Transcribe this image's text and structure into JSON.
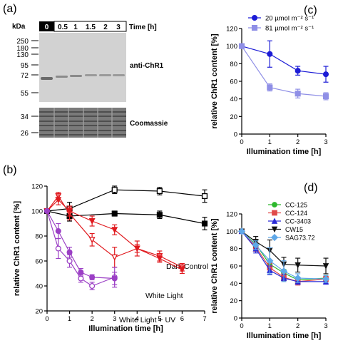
{
  "panels": {
    "a": "(a)",
    "b": "(b)",
    "c": "(c)",
    "d": "(d)"
  },
  "blot": {
    "kda_label": "kDa",
    "time_label": "Time [h]",
    "lanes": [
      "0",
      "0.5",
      "1",
      "1.5",
      "2",
      "3"
    ],
    "markers_top": [
      "250",
      "180",
      "130",
      "95",
      "72",
      "55"
    ],
    "markers_bottom": [
      "34",
      "26"
    ],
    "label_top": "anti-ChR1",
    "label_bottom": "Coomassie"
  },
  "chart_data": [
    {
      "panel": "b",
      "type": "line",
      "xlabel": "Illumination time [h]",
      "ylabel": "relative ChR1 content [%]",
      "xlim": [
        0,
        7
      ],
      "ylim": [
        20,
        120
      ],
      "xticks": [
        "0",
        "1",
        "2",
        "3",
        "4",
        "5",
        "6",
        "7"
      ],
      "yticks": [
        "20",
        "40",
        "60",
        "80",
        "100",
        "120"
      ],
      "annotations": [
        "Dark Control",
        "White Light",
        "White Light + UV"
      ],
      "series": [
        {
          "marker": "open-square",
          "color": "#000000",
          "x": [
            0,
            1,
            3,
            5,
            7
          ],
          "y": [
            100,
            102,
            117,
            116,
            112
          ],
          "err": [
            0,
            5,
            3,
            3,
            5
          ]
        },
        {
          "marker": "filled-square",
          "color": "#000000",
          "x": [
            0,
            1,
            3,
            5,
            7
          ],
          "y": [
            100,
            96,
            98,
            97,
            90
          ],
          "err": [
            0,
            4,
            2,
            3,
            5
          ]
        },
        {
          "marker": "open-triangle-down",
          "color": "#e0191e",
          "x": [
            0,
            0.5,
            1,
            2,
            3,
            4,
            5,
            6
          ],
          "y": [
            100,
            112,
            98,
            77,
            63,
            70,
            64,
            55
          ],
          "err": [
            0,
            3,
            5,
            5,
            8,
            6,
            4,
            3
          ]
        },
        {
          "marker": "filled-triangle-down",
          "color": "#e0191e",
          "x": [
            0,
            0.5,
            1,
            2,
            3,
            4,
            5,
            6
          ],
          "y": [
            100,
            109,
            100,
            92,
            85,
            70,
            62,
            53
          ],
          "err": [
            0,
            4,
            4,
            4,
            4,
            3,
            3,
            3
          ]
        },
        {
          "marker": "open-circle",
          "color": "#9b3fc5",
          "x": [
            0,
            0.5,
            1,
            1.5,
            2,
            3
          ],
          "y": [
            100,
            70,
            60,
            46,
            40,
            47
          ],
          "err": [
            0,
            8,
            5,
            3,
            3,
            8
          ]
        },
        {
          "marker": "filled-circle",
          "color": "#9b3fc5",
          "x": [
            0,
            0.5,
            1,
            1.5,
            2,
            3
          ],
          "y": [
            100,
            84,
            67,
            51,
            47,
            46
          ],
          "err": [
            0,
            6,
            4,
            3,
            2,
            5
          ]
        }
      ]
    },
    {
      "panel": "c",
      "type": "line",
      "xlabel": "Illumination time [h]",
      "ylabel": "relative ChR1 content [%]",
      "xlim": [
        0,
        3
      ],
      "ylim": [
        0,
        120
      ],
      "xticks": [
        "0",
        "1",
        "2",
        "3"
      ],
      "yticks": [
        "0",
        "20",
        "40",
        "60",
        "80",
        "100",
        "120"
      ],
      "legend": "top-right",
      "series": [
        {
          "name": "20 µmol m⁻² s⁻¹",
          "marker": "filled-circle",
          "color": "#1c1cd6",
          "x": [
            0,
            1,
            2,
            3
          ],
          "y": [
            100,
            91,
            72,
            68
          ],
          "err": [
            0,
            15,
            5,
            9
          ]
        },
        {
          "name": "81 µmol m⁻² s⁻¹",
          "marker": "filled-square",
          "color": "#8f8fe6",
          "x": [
            0,
            1,
            2,
            3
          ],
          "y": [
            100,
            53,
            46,
            43
          ],
          "err": [
            0,
            4,
            5,
            4
          ]
        }
      ]
    },
    {
      "panel": "d",
      "type": "line",
      "xlabel": "Illumination time [h]",
      "ylabel": "relative ChR1 content [%]",
      "xlim": [
        0,
        3
      ],
      "ylim": [
        0,
        120
      ],
      "xticks": [
        "0",
        "1",
        "2",
        "3"
      ],
      "yticks": [
        "0",
        "20",
        "40",
        "60",
        "80",
        "100",
        "120"
      ],
      "legend": "top-right",
      "series": [
        {
          "name": "CC-125",
          "marker": "filled-circle",
          "color": "#2db82d",
          "x": [
            0,
            0.5,
            1,
            1.5,
            2,
            3
          ],
          "y": [
            100,
            85,
            62,
            52,
            44,
            46
          ],
          "err": [
            0,
            4,
            4,
            4,
            3,
            3
          ]
        },
        {
          "name": "CC-124",
          "marker": "filled-square",
          "color": "#e04a4a",
          "x": [
            0,
            0.5,
            1,
            1.5,
            2,
            3
          ],
          "y": [
            100,
            82,
            58,
            47,
            42,
            45
          ],
          "err": [
            0,
            5,
            5,
            4,
            4,
            3
          ]
        },
        {
          "name": "CC-3403",
          "marker": "filled-triangle-up",
          "color": "#2a2ad6",
          "x": [
            0,
            0.5,
            1,
            1.5,
            2,
            3
          ],
          "y": [
            100,
            80,
            55,
            46,
            42,
            42
          ],
          "err": [
            0,
            5,
            5,
            4,
            3,
            3
          ]
        },
        {
          "name": "CW15",
          "marker": "filled-triangle-down",
          "color": "#111111",
          "x": [
            0,
            0.5,
            1,
            1.5,
            2,
            3
          ],
          "y": [
            100,
            88,
            78,
            62,
            61,
            60
          ],
          "err": [
            0,
            6,
            12,
            8,
            8,
            9
          ]
        },
        {
          "name": "SAG73.72",
          "marker": "filled-diamond",
          "color": "#5fa8e8",
          "x": [
            0,
            0.5,
            1,
            1.5,
            2,
            3
          ],
          "y": [
            100,
            84,
            66,
            54,
            46,
            45
          ],
          "err": [
            0,
            5,
            15,
            12,
            5,
            4
          ]
        }
      ]
    }
  ]
}
